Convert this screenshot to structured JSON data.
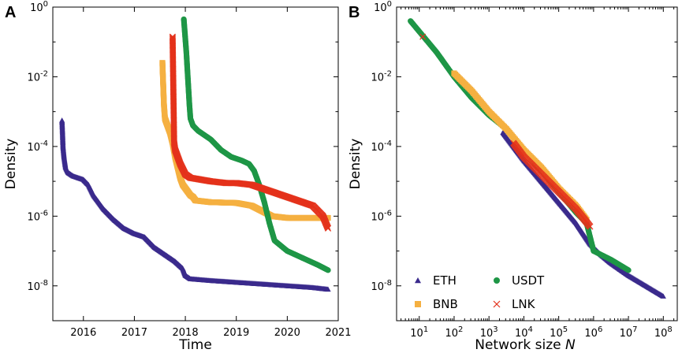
{
  "colors": {
    "ETH": "#3a2a8c",
    "BNB": "#f5b041",
    "USDT": "#1e9646",
    "LNK": "#e4321b"
  },
  "chart_data": [
    {
      "id": "A",
      "panel_label": "A",
      "type": "scatter",
      "xlabel": "Time",
      "ylabel": "Density",
      "yscale": "log",
      "xlim": [
        2015.4,
        2021.0
      ],
      "ylim_exp": [
        -9,
        0
      ],
      "xticks": [
        2016,
        2017,
        2018,
        2019,
        2020,
        2021
      ],
      "xtick_labels": [
        "2016",
        "2017",
        "2018",
        "2019",
        "2020",
        "2021"
      ],
      "yticks_exp": [
        -8,
        -6,
        -4,
        -2,
        0
      ],
      "ytick_labels": [
        "10^-8",
        "10^-6",
        "10^-4",
        "10^-2",
        "10^0"
      ],
      "series": [
        {
          "name": "ETH",
          "marker": "triangle",
          "density": "dense",
          "x": [
            2015.58,
            2015.59,
            2015.6,
            2015.62,
            2015.65,
            2015.7,
            2015.8,
            2016.0,
            2016.1,
            2016.2,
            2016.4,
            2016.6,
            2016.8,
            2017.0,
            2017.2,
            2017.4,
            2017.6,
            2017.8,
            2017.95,
            2018.0,
            2018.1,
            2018.5,
            2019.0,
            2019.5,
            2020.0,
            2020.5,
            2020.8
          ],
          "logy": [
            -3.25,
            -3.6,
            -4.0,
            -4.3,
            -4.6,
            -4.75,
            -4.85,
            -4.95,
            -5.1,
            -5.4,
            -5.8,
            -6.1,
            -6.35,
            -6.5,
            -6.6,
            -6.9,
            -7.1,
            -7.3,
            -7.5,
            -7.7,
            -7.8,
            -7.85,
            -7.9,
            -7.95,
            -8.0,
            -8.05,
            -8.1
          ]
        },
        {
          "name": "BNB",
          "marker": "square",
          "density": "dense",
          "x": [
            2017.55,
            2017.56,
            2017.57,
            2017.58,
            2017.6,
            2017.65,
            2017.7,
            2017.75,
            2017.8,
            2017.85,
            2017.9,
            2017.95,
            2018.0,
            2018.05,
            2018.1,
            2018.15,
            2018.2,
            2018.5,
            2019.0,
            2019.3,
            2019.5,
            2019.7,
            2020.0,
            2020.5,
            2020.8
          ],
          "logy": [
            -1.6,
            -2.0,
            -2.4,
            -2.8,
            -3.2,
            -3.4,
            -3.6,
            -3.9,
            -4.3,
            -4.6,
            -4.9,
            -5.1,
            -5.2,
            -5.3,
            -5.4,
            -5.45,
            -5.55,
            -5.6,
            -5.62,
            -5.7,
            -5.85,
            -6.0,
            -6.05,
            -6.05,
            -6.05
          ]
        },
        {
          "name": "USDT",
          "marker": "circle",
          "density": "dense",
          "x": [
            2017.97,
            2018.02,
            2018.04,
            2018.06,
            2018.08,
            2018.1,
            2018.15,
            2018.25,
            2018.35,
            2018.5,
            2018.7,
            2018.9,
            2019.1,
            2019.25,
            2019.35,
            2019.45,
            2019.55,
            2019.65,
            2019.75,
            2020.0,
            2020.3,
            2020.6,
            2020.8
          ],
          "logy": [
            -0.35,
            -1.3,
            -1.8,
            -2.3,
            -2.8,
            -3.2,
            -3.4,
            -3.55,
            -3.65,
            -3.8,
            -4.1,
            -4.3,
            -4.4,
            -4.5,
            -4.7,
            -5.1,
            -5.6,
            -6.2,
            -6.7,
            -7.0,
            -7.2,
            -7.4,
            -7.55
          ]
        },
        {
          "name": "LNK",
          "marker": "cross",
          "density": "dense",
          "x": [
            2017.75,
            2017.78,
            2017.8,
            2017.85,
            2017.9,
            2017.95,
            2018.0,
            2018.1,
            2018.3,
            2018.5,
            2018.8,
            2019.0,
            2019.3,
            2019.6,
            2019.9,
            2020.2,
            2020.5,
            2020.7,
            2020.8
          ],
          "logy": [
            -0.85,
            -3.9,
            -4.1,
            -4.3,
            -4.5,
            -4.65,
            -4.8,
            -4.9,
            -4.95,
            -5.0,
            -5.05,
            -5.05,
            -5.1,
            -5.25,
            -5.4,
            -5.55,
            -5.7,
            -6.0,
            -6.35
          ]
        }
      ]
    },
    {
      "id": "B",
      "panel_label": "B",
      "type": "scatter",
      "xlabel": "Network size",
      "xlabel_var": "N",
      "ylabel": "Density",
      "xscale": "log",
      "yscale": "log",
      "xlim_exp": [
        0.35,
        8.4
      ],
      "ylim_exp": [
        -9,
        0
      ],
      "xticks_exp": [
        1,
        2,
        3,
        4,
        5,
        6,
        7,
        8
      ],
      "xtick_labels": [
        "10^1",
        "10^2",
        "10^3",
        "10^4",
        "10^5",
        "10^6",
        "10^7",
        "10^8"
      ],
      "yticks_exp": [
        -8,
        -6,
        -4,
        -2,
        0
      ],
      "ytick_labels": [
        "10^-8",
        "10^-6",
        "10^-4",
        "10^-2",
        "10^0"
      ],
      "legend": {
        "placement": "bottom-left",
        "columns": 2,
        "order": [
          "ETH",
          "USDT",
          "BNB",
          "LNK"
        ]
      },
      "series": [
        {
          "name": "ETH",
          "marker": "triangle",
          "density": "dense",
          "logx": [
            3.4,
            4.0,
            4.5,
            5.0,
            5.5,
            5.9,
            6.2,
            6.5,
            7.0,
            7.5,
            8.0
          ],
          "logy": [
            -3.6,
            -4.4,
            -5.0,
            -5.6,
            -6.2,
            -6.8,
            -7.1,
            -7.35,
            -7.7,
            -8.0,
            -8.3
          ]
        },
        {
          "name": "BNB",
          "marker": "square",
          "density": "dense",
          "logx": [
            2.0,
            2.5,
            3.0,
            3.5,
            4.0,
            4.5,
            5.0,
            5.5,
            5.8
          ],
          "logy": [
            -1.9,
            -2.4,
            -3.0,
            -3.5,
            -4.1,
            -4.6,
            -5.2,
            -5.7,
            -6.1
          ]
        },
        {
          "name": "USDT",
          "marker": "circle",
          "density": "dense",
          "logx": [
            0.75,
            1.0,
            1.5,
            2.0,
            2.5,
            3.0,
            3.5,
            4.0,
            4.5,
            5.0,
            5.5,
            5.8,
            6.0,
            6.5,
            7.0
          ],
          "logy": [
            -0.4,
            -0.7,
            -1.3,
            -2.0,
            -2.6,
            -3.1,
            -3.5,
            -4.1,
            -4.7,
            -5.3,
            -5.9,
            -6.2,
            -7.0,
            -7.25,
            -7.55
          ]
        },
        {
          "name": "LNK",
          "marker": "cross",
          "density": "dense",
          "logx": [
            1.1,
            3.7,
            4.0,
            4.5,
            5.0,
            5.5,
            5.9
          ],
          "logy": [
            -0.85,
            -3.9,
            -4.3,
            -4.8,
            -5.3,
            -5.8,
            -6.3
          ]
        }
      ]
    }
  ]
}
